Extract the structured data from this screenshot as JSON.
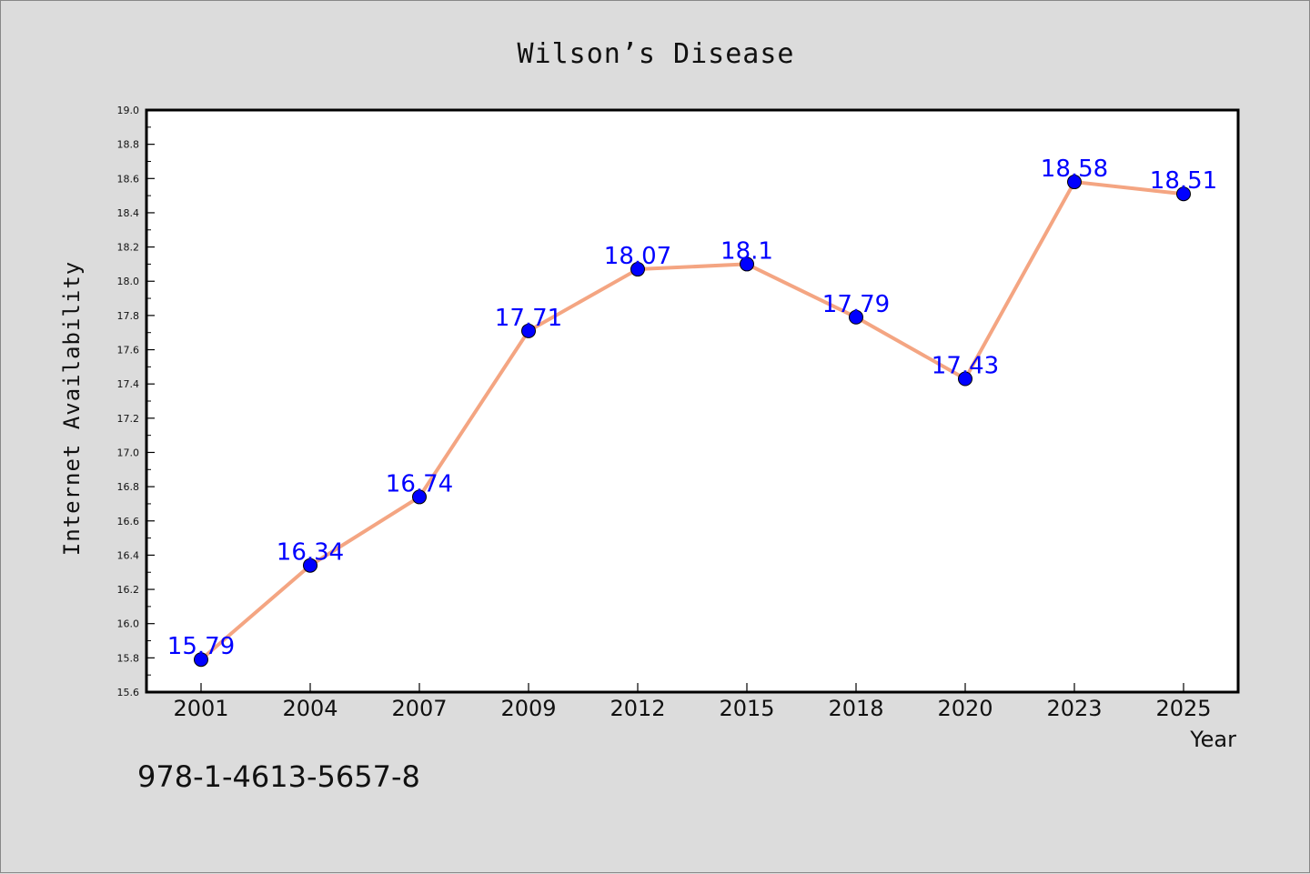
{
  "colors": {
    "background": "#dcdcdc",
    "plot_background": "#ffffff",
    "line": "#f4a582",
    "marker": "#0000ff",
    "data_label": "#0000ff"
  },
  "footer_code": "978-1-4613-5657-8",
  "chart_data": {
    "type": "line",
    "title": "Wilson’s Disease",
    "xlabel": "Year",
    "ylabel": "Internet Availability",
    "categories": [
      "2001",
      "2004",
      "2007",
      "2009",
      "2012",
      "2015",
      "2018",
      "2020",
      "2023",
      "2025"
    ],
    "series": [
      {
        "values": [
          15.79,
          16.34,
          16.74,
          17.71,
          18.07,
          18.1,
          17.79,
          17.43,
          18.58,
          18.51
        ]
      }
    ],
    "data_labels": [
      "15.79",
      "16.34",
      "16.74",
      "17.71",
      "18.07",
      "18.1",
      "17.79",
      "17.43",
      "18.58",
      "18.51"
    ],
    "ylim": [
      15.6,
      19.0
    ],
    "yticks": [
      "15.6",
      "15.8",
      "16.0",
      "16.2",
      "16.4",
      "16.6",
      "16.8",
      "17.0",
      "17.2",
      "17.4",
      "17.6",
      "17.8",
      "18.0",
      "18.2",
      "18.4",
      "18.6",
      "18.8",
      "19.0"
    ],
    "grid": false,
    "legend": "none"
  }
}
